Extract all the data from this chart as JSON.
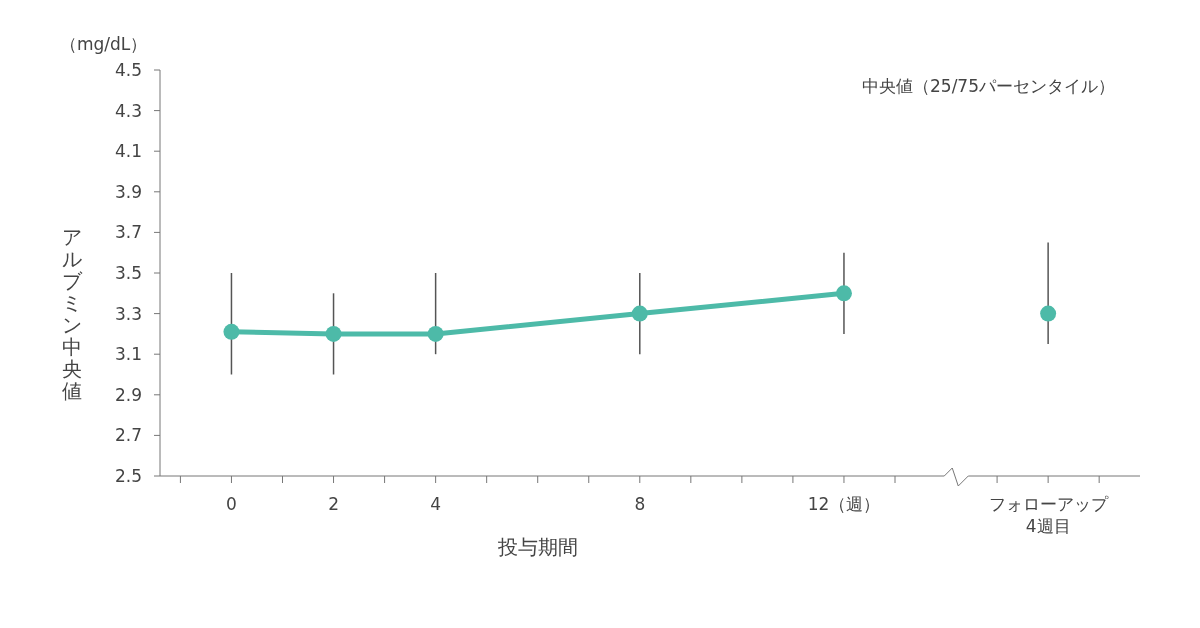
{
  "chart_data": {
    "type": "line",
    "xlabel": "投与期間",
    "ylabel": "アルブミン中央値",
    "annotations": [
      "（mg/dL）",
      "中央値（25/75パーセンタイル）"
    ],
    "series": [
      {
        "type": "line",
        "color": "#4dbaa8",
        "marker": "circle",
        "x": [
          0,
          2,
          4,
          8,
          12
        ],
        "values": [
          3.21,
          3.2,
          3.2,
          3.3,
          3.4
        ],
        "errors": [
          [
            3.0,
            3.5
          ],
          [
            3.0,
            3.4
          ],
          [
            3.1,
            3.5
          ],
          [
            3.1,
            3.5
          ],
          [
            3.2,
            3.6
          ]
        ]
      },
      {
        "type": "scatter",
        "color": "#4dbaa8",
        "marker": "circle",
        "x": [
          16
        ],
        "values": [
          3.3
        ],
        "errors": [
          [
            3.15,
            3.65
          ]
        ]
      }
    ],
    "xlim": [
      -1.4,
      17.8
    ],
    "xticks": [
      {
        "value": -1,
        "label": null
      },
      0,
      {
        "value": 1,
        "label": null
      },
      2,
      {
        "value": 3,
        "label": null
      },
      4,
      {
        "value": 5,
        "label": null
      },
      {
        "value": 6,
        "label": null
      },
      {
        "value": 7,
        "label": null
      },
      8,
      {
        "value": 9,
        "label": null
      },
      {
        "value": 10,
        "label": null
      },
      {
        "value": 11,
        "label": null
      },
      {
        "value": 12,
        "label": "12（週）"
      },
      {
        "value": 13,
        "label": null
      },
      {
        "value": 15,
        "label": null
      },
      {
        "value": 16,
        "label": "フォローアップ\n4週目"
      },
      {
        "value": 17,
        "label": null
      }
    ],
    "ylim": [
      2.5,
      4.5
    ],
    "yticks": [
      2.5,
      2.7,
      2.9,
      3.1,
      3.3,
      3.5,
      3.7,
      3.9,
      4.1,
      4.3,
      4.5
    ]
  }
}
